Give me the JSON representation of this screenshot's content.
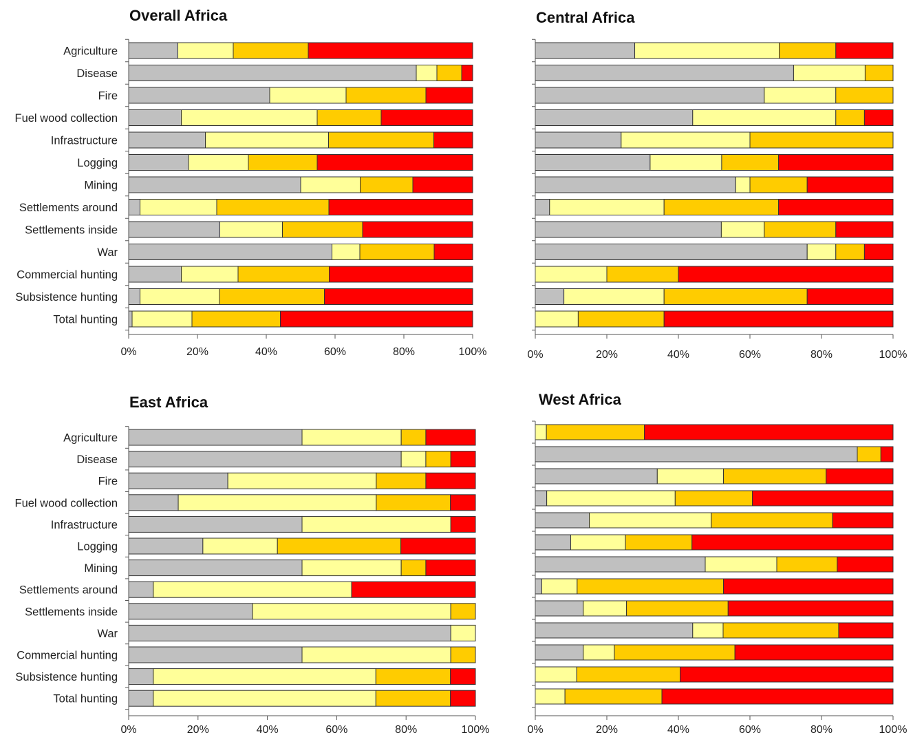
{
  "colors": {
    "grey": "#c0c0c0",
    "light_yellow": "#ffff99",
    "orange": "#ffcc00",
    "red": "#ff0000",
    "bar_border": "#333333",
    "axis": "#555555"
  },
  "chart_data": [
    {
      "type": "bar",
      "stacked": true,
      "orientation": "horizontal",
      "percent_scale": true,
      "title": "Overall Africa",
      "categories": [
        "Agriculture",
        "Disease",
        "Fire",
        "Fuel wood collection",
        "Infrastructure",
        "Logging",
        "Mining",
        "Settlements around",
        "Settlements inside",
        "War",
        "Commercial hunting",
        "Subsistence hunting",
        "Total hunting"
      ],
      "xlim": [
        0,
        100
      ],
      "xticks": [
        "0%",
        "20%",
        "40%",
        "60%",
        "80%",
        "100%"
      ],
      "legend": "none",
      "series": [
        {
          "color": "#c0c0c0",
          "values": [
            14.3,
            83.6,
            41.0,
            15.3,
            22.3,
            17.4,
            50.0,
            3.3,
            26.5,
            59.1,
            15.3,
            3.3,
            1.0
          ]
        },
        {
          "color": "#ffff99",
          "values": [
            16.1,
            6.0,
            22.2,
            39.5,
            35.8,
            17.4,
            17.3,
            22.3,
            18.2,
            8.1,
            16.5,
            23.1,
            17.4
          ]
        },
        {
          "color": "#ffcc00",
          "values": [
            21.8,
            7.2,
            23.2,
            18.6,
            30.6,
            20.0,
            15.3,
            32.6,
            23.3,
            21.6,
            26.5,
            30.5,
            25.7
          ]
        },
        {
          "color": "#ff0000",
          "values": [
            47.8,
            3.2,
            13.6,
            26.6,
            11.3,
            45.2,
            17.4,
            41.8,
            32.0,
            11.2,
            41.7,
            43.1,
            55.9
          ]
        }
      ]
    },
    {
      "type": "bar",
      "stacked": true,
      "orientation": "horizontal",
      "percent_scale": true,
      "title": "Central Africa",
      "categories": [
        "Agriculture",
        "Disease",
        "Fire",
        "Fuel wood collection",
        "Infrastructure",
        "Logging",
        "Mining",
        "Settlements around",
        "Settlements inside",
        "War",
        "Commercial hunting",
        "Subsistence hunting",
        "Total hunting"
      ],
      "xlim": [
        0,
        100
      ],
      "xticks": [
        "0%",
        "20%",
        "40%",
        "60%",
        "80%",
        "100%"
      ],
      "legend": "none",
      "series": [
        {
          "color": "#c0c0c0",
          "values": [
            27.8,
            72.2,
            64.0,
            44.0,
            24.0,
            32.1,
            56.0,
            4.0,
            52.0,
            76.0,
            0.0,
            8.0,
            0.0
          ]
        },
        {
          "color": "#ffff99",
          "values": [
            40.4,
            20.0,
            20.0,
            40.0,
            36.0,
            20.0,
            4.0,
            32.0,
            12.0,
            8.0,
            20.0,
            28.0,
            12.0
          ]
        },
        {
          "color": "#ffcc00",
          "values": [
            15.8,
            7.8,
            16.0,
            8.0,
            40.0,
            15.9,
            16.0,
            32.0,
            20.0,
            8.0,
            20.0,
            40.0,
            24.0
          ]
        },
        {
          "color": "#ff0000",
          "values": [
            16.0,
            0.0,
            0.0,
            8.0,
            0.0,
            32.0,
            24.0,
            32.0,
            16.0,
            8.0,
            60.0,
            24.0,
            64.0
          ]
        }
      ]
    },
    {
      "type": "bar",
      "stacked": true,
      "orientation": "horizontal",
      "percent_scale": true,
      "title": "East Africa",
      "categories": [
        "Agriculture",
        "Disease",
        "Fire",
        "Fuel wood collection",
        "Infrastructure",
        "Logging",
        "Mining",
        "Settlements around",
        "Settlements inside",
        "War",
        "Commercial hunting",
        "Subsistence hunting",
        "Total hunting"
      ],
      "xlim": [
        0,
        100
      ],
      "xticks": [
        "0%",
        "20%",
        "40%",
        "60%",
        "80%",
        "100%"
      ],
      "legend": "none",
      "series": [
        {
          "color": "#c0c0c0",
          "values": [
            50.0,
            78.6,
            28.6,
            14.3,
            50.0,
            21.4,
            50.0,
            7.1,
            35.7,
            92.9,
            50.0,
            7.1,
            7.1
          ]
        },
        {
          "color": "#ffff99",
          "values": [
            28.6,
            7.1,
            42.8,
            57.1,
            42.9,
            21.5,
            28.6,
            57.2,
            57.2,
            7.1,
            42.9,
            64.2,
            64.2
          ]
        },
        {
          "color": "#ffcc00",
          "values": [
            7.1,
            7.2,
            14.3,
            21.4,
            0.0,
            35.6,
            7.1,
            0.0,
            7.1,
            0.0,
            7.1,
            21.5,
            21.5
          ]
        },
        {
          "color": "#ff0000",
          "values": [
            14.3,
            7.1,
            14.3,
            7.2,
            7.1,
            21.5,
            14.3,
            35.7,
            0.0,
            0.0,
            0.0,
            7.2,
            7.2
          ]
        }
      ]
    },
    {
      "type": "bar",
      "stacked": true,
      "orientation": "horizontal",
      "percent_scale": true,
      "title": "West Africa",
      "categories": [
        "Agriculture",
        "Disease",
        "Fire",
        "Fuel wood collection",
        "Infrastructure",
        "Logging",
        "Mining",
        "Settlements around",
        "Settlements inside",
        "War",
        "Commercial hunting",
        "Subsistence hunting",
        "Total hunting"
      ],
      "xlim": [
        0,
        100
      ],
      "xticks": [
        "0%",
        "20%",
        "40%",
        "60%",
        "80%",
        "100%"
      ],
      "legend": "none",
      "series": [
        {
          "color": "#c0c0c0",
          "values": [
            0.0,
            90.0,
            34.1,
            3.2,
            15.1,
            9.9,
            47.5,
            1.8,
            13.4,
            44.0,
            13.4,
            0.0,
            0.0
          ]
        },
        {
          "color": "#ffff99",
          "values": [
            3.1,
            0.0,
            18.5,
            35.9,
            34.1,
            15.3,
            20.0,
            9.9,
            12.1,
            8.5,
            8.7,
            11.6,
            8.3
          ]
        },
        {
          "color": "#ffcc00",
          "values": [
            27.4,
            6.6,
            28.7,
            21.6,
            33.9,
            18.6,
            16.9,
            40.9,
            28.4,
            32.3,
            33.7,
            28.9,
            27.1
          ]
        },
        {
          "color": "#ff0000",
          "values": [
            69.5,
            3.4,
            18.7,
            39.3,
            16.9,
            56.2,
            15.6,
            47.4,
            46.1,
            15.2,
            44.2,
            59.5,
            64.6
          ]
        }
      ]
    }
  ]
}
